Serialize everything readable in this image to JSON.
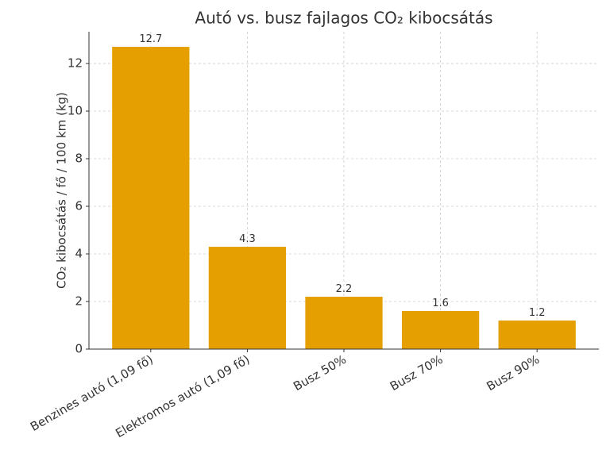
{
  "chart_data": {
    "type": "bar",
    "title": "Autó vs. busz fajlagos CO₂ kibocsátás",
    "y_label": "CO₂ kibocsátás / fő / 100 km (kg)",
    "categories": [
      "Benzines autó (1,09 fő)",
      "Elektromos autó (1,09 fő)",
      "Busz 50%",
      "Busz 70%",
      "Busz 90%"
    ],
    "values": [
      12.7,
      4.3,
      2.2,
      1.6,
      1.2
    ],
    "color": "#e69f00",
    "ylim": [
      0,
      13.335
    ],
    "yticks": [
      0,
      2,
      4,
      6,
      8,
      10,
      12
    ],
    "grid": true
  }
}
